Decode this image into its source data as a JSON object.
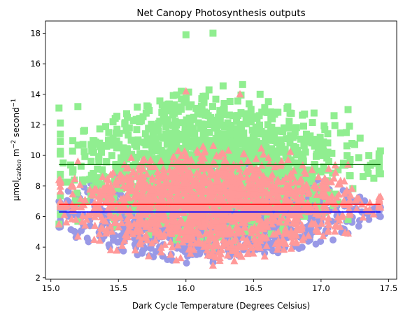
{
  "chart_data": {
    "type": "scatter",
    "title": "Net Canopy Photosynthesis outputs",
    "xlabel": "Dark Cycle Temperature (Degrees Celsius)",
    "ylabel_main": "μmol",
    "ylabel_sub": "carbon",
    "ylabel_rest": " m",
    "ylabel_sup1": "−2",
    "ylabel_mid": " second",
    "ylabel_sup2": "−1",
    "xlim": [
      14.96,
      17.56
    ],
    "ylim": [
      1.9,
      18.8
    ],
    "xticks": [
      15.0,
      15.5,
      16.0,
      16.5,
      17.0,
      17.5
    ],
    "xtick_labels": [
      "15.0",
      "15.5",
      "16.0",
      "16.5",
      "17.0",
      "17.5"
    ],
    "yticks": [
      2,
      4,
      6,
      8,
      10,
      12,
      14,
      16,
      18
    ],
    "ytick_labels": [
      "2",
      "4",
      "6",
      "8",
      "10",
      "12",
      "14",
      "16",
      "18"
    ],
    "grid": false,
    "series": [
      {
        "marker": "circle",
        "color": "#9999e6",
        "x_range": [
          15.06,
          17.44
        ],
        "center": [
          16.2,
          6.3
        ],
        "x_spread": 0.48,
        "y_spread": 3.6,
        "outline": [
          [
            15.06,
            5.3
          ],
          [
            15.06,
            7.0
          ],
          [
            15.2,
            4.9
          ],
          [
            15.2,
            7.5
          ],
          [
            16.2,
            3.0
          ],
          [
            16.2,
            9.8
          ],
          [
            17.2,
            4.9
          ],
          [
            17.2,
            7.6
          ],
          [
            17.44,
            6.0
          ],
          [
            17.44,
            6.6
          ]
        ]
      },
      {
        "marker": "square",
        "color": "#90ee90",
        "x_range": [
          15.06,
          17.44
        ],
        "center": [
          16.2,
          9.4
        ],
        "x_spread": 0.48,
        "y_spread": 5.4,
        "outline": [
          [
            15.06,
            5.5
          ],
          [
            15.06,
            13.1
          ],
          [
            15.2,
            5.7
          ],
          [
            15.2,
            13.2
          ],
          [
            16.0,
            17.9
          ],
          [
            16.2,
            4.0
          ],
          [
            16.2,
            18.0
          ],
          [
            17.2,
            5.8
          ],
          [
            17.2,
            13.0
          ],
          [
            17.44,
            8.8
          ],
          [
            17.44,
            10.3
          ]
        ]
      },
      {
        "marker": "triangle",
        "color": "#ff9999",
        "x_range": [
          15.06,
          17.44
        ],
        "center": [
          16.2,
          6.8
        ],
        "x_spread": 0.48,
        "y_spread": 4.0,
        "outline": [
          [
            15.06,
            5.5
          ],
          [
            15.06,
            8.4
          ],
          [
            15.2,
            4.7
          ],
          [
            15.2,
            9.6
          ],
          [
            16.0,
            14.2
          ],
          [
            16.2,
            2.8
          ],
          [
            16.4,
            14.0
          ],
          [
            17.2,
            4.9
          ],
          [
            17.2,
            9.4
          ],
          [
            17.44,
            6.6
          ],
          [
            17.44,
            7.3
          ]
        ]
      }
    ],
    "mean_lines": [
      {
        "color": "#006400",
        "x": [
          15.06,
          17.44
        ],
        "y": 9.4
      },
      {
        "color": "#ff0000",
        "x": [
          15.06,
          17.44
        ],
        "y": 6.8
      },
      {
        "color": "#0000ff",
        "x": [
          15.06,
          17.44
        ],
        "y": 6.3
      }
    ]
  }
}
